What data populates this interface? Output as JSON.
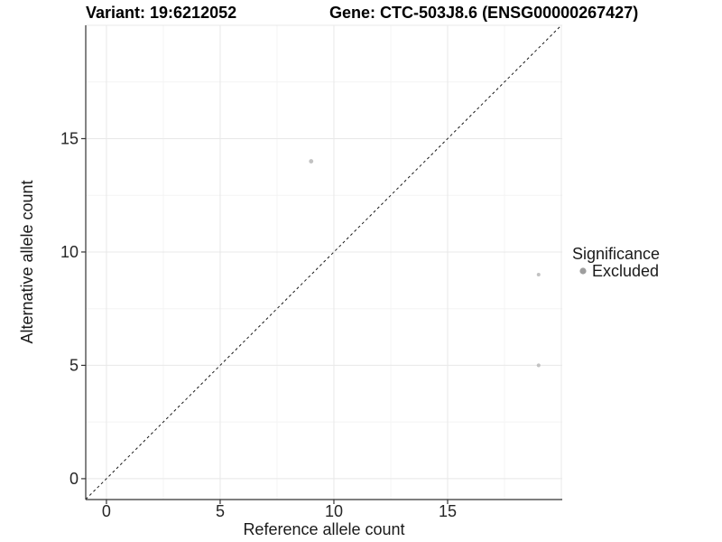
{
  "chart_data": {
    "type": "scatter",
    "title_left": "Variant: 19:6212052",
    "title_right": "Gene: CTC-503J8.6 (ENSG00000267427)",
    "xlabel": "Reference allele count",
    "ylabel": "Alternative allele count",
    "xlim": [
      -0.91,
      20.04
    ],
    "ylim": [
      -0.92,
      20.0
    ],
    "x_tick_labels": [
      "0",
      "5",
      "10",
      "15"
    ],
    "x_tick_values": [
      0,
      5,
      10,
      15
    ],
    "y_tick_labels": [
      "0",
      "5",
      "10",
      "15"
    ],
    "y_tick_values": [
      0,
      5,
      10,
      15
    ],
    "x_grid_major": [
      0,
      5,
      10,
      15,
      20
    ],
    "y_grid_major": [
      0,
      5,
      10,
      15,
      20
    ],
    "x_grid_minor": [
      2.5,
      7.5,
      12.5,
      17.5
    ],
    "y_grid_minor": [
      2.5,
      7.5,
      12.5,
      17.5
    ],
    "grid": true,
    "identity_line": {
      "style": "dashed",
      "slope": 1,
      "intercept": 0
    },
    "series": [
      {
        "name": "Excluded",
        "color": "#c2c2c2",
        "points": [
          {
            "x": 9,
            "y": 14,
            "r": 2.4
          },
          {
            "x": 19,
            "y": 9,
            "r": 2.0
          },
          {
            "x": 19,
            "y": 5,
            "r": 2.1
          }
        ]
      }
    ],
    "legend": {
      "title": "Significance",
      "position": "right",
      "items": [
        {
          "label": "Excluded",
          "marker": "circle",
          "color": "#9e9e9e",
          "marker_radius": 3.6
        }
      ]
    }
  },
  "style": {
    "background_color": "#ffffff",
    "grid_major_color": "#e8e8e8",
    "grid_minor_color": "#f4f4f4",
    "axis_line_color": "#333333",
    "tick_color": "#333333",
    "identity_line_color": "#1a1a1a"
  }
}
